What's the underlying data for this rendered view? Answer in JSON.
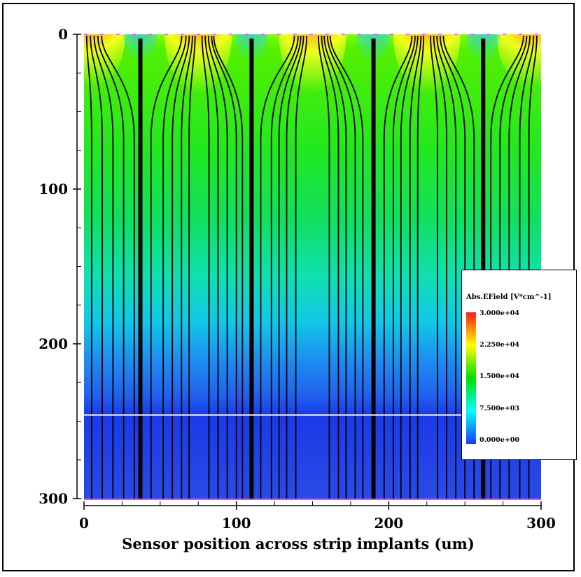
{
  "chart_data": {
    "type": "heatmap",
    "title": "",
    "xlabel": "Sensor position across strip implants (um)",
    "ylabel": "",
    "xlim": [
      0,
      300
    ],
    "ylim": [
      300,
      0
    ],
    "x_ticks": [
      "0",
      "100",
      "200",
      "300"
    ],
    "y_ticks": [
      "0",
      "100",
      "200",
      "300"
    ],
    "y_axis_inverted": true,
    "legend": {
      "title": "Abs.EField [V*cm^-1]",
      "placement": "right",
      "colormap": [
        "#ff1a1a",
        "#ffff00",
        "#00e000",
        "#00ffff",
        "#1a3aff"
      ],
      "ticks": [
        "3.000e+04",
        "2.250e+04",
        "1.500e+04",
        "7.500e+03",
        "0.000e+00"
      ],
      "tick_values": [
        30000,
        22500,
        15000,
        7500,
        0
      ]
    },
    "strip_implant_centers_um": [
      0,
      75,
      150,
      225,
      300
    ],
    "gap_centers_um": [
      37,
      110,
      190,
      262
    ],
    "high_field_regions_um": [
      {
        "x": 5,
        "depth": 18
      },
      {
        "x": 75,
        "depth": 20
      },
      {
        "x": 150,
        "depth": 20
      },
      {
        "x": 225,
        "depth": 20
      },
      {
        "x": 293,
        "depth": 18
      }
    ],
    "depth_field_profile": [
      {
        "depth": 0,
        "field_V_per_cm": 30000
      },
      {
        "depth": 20,
        "field_V_per_cm": 19000
      },
      {
        "depth": 50,
        "field_V_per_cm": 16000
      },
      {
        "depth": 100,
        "field_V_per_cm": 14000
      },
      {
        "depth": 150,
        "field_V_per_cm": 10000
      },
      {
        "depth": 200,
        "field_V_per_cm": 5000
      },
      {
        "depth": 245,
        "field_V_per_cm": 500
      },
      {
        "depth": 300,
        "field_V_per_cm": 0
      }
    ],
    "depletion_boundary_depth_um": 246,
    "field_line_x_um": [
      5,
      12,
      19,
      26,
      33,
      44,
      52,
      58,
      64,
      69,
      82,
      88,
      94,
      100,
      104,
      116,
      123,
      128,
      133,
      139,
      161,
      167,
      172,
      178,
      183,
      197,
      203,
      208,
      214,
      219,
      232,
      238,
      244,
      250,
      256,
      267,
      273,
      279,
      286,
      292
    ]
  }
}
